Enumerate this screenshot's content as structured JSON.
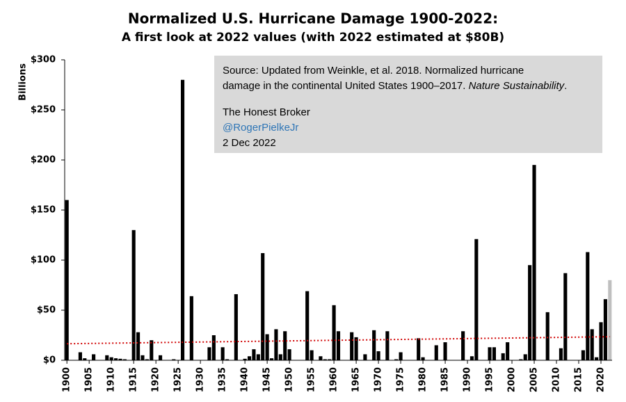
{
  "chart_data": {
    "type": "bar",
    "title": "Normalized U.S. Hurricane Damage 1900-2022:",
    "subtitle": "A first look at 2022 values (with 2022 estimated at $80B)",
    "y_label": "Billions",
    "color": "#000000",
    "x": [
      1900,
      1901,
      1902,
      1903,
      1904,
      1905,
      1906,
      1907,
      1908,
      1909,
      1910,
      1911,
      1912,
      1913,
      1914,
      1915,
      1916,
      1917,
      1918,
      1919,
      1920,
      1921,
      1922,
      1923,
      1924,
      1925,
      1926,
      1927,
      1928,
      1929,
      1930,
      1931,
      1932,
      1933,
      1934,
      1935,
      1936,
      1937,
      1938,
      1939,
      1940,
      1941,
      1942,
      1943,
      1944,
      1945,
      1946,
      1947,
      1948,
      1949,
      1950,
      1951,
      1952,
      1953,
      1954,
      1955,
      1956,
      1957,
      1958,
      1959,
      1960,
      1961,
      1962,
      1963,
      1964,
      1965,
      1966,
      1967,
      1968,
      1969,
      1970,
      1971,
      1972,
      1973,
      1974,
      1975,
      1976,
      1977,
      1978,
      1979,
      1980,
      1981,
      1982,
      1983,
      1984,
      1985,
      1986,
      1987,
      1988,
      1989,
      1990,
      1991,
      1992,
      1993,
      1994,
      1995,
      1996,
      1997,
      1998,
      1999,
      2000,
      2001,
      2002,
      2003,
      2004,
      2005,
      2006,
      2007,
      2008,
      2009,
      2010,
      2011,
      2012,
      2013,
      2014,
      2015,
      2016,
      2017,
      2018,
      2019,
      2020,
      2021
    ],
    "values": [
      160,
      0,
      0,
      8,
      2,
      0,
      6,
      0,
      0,
      5,
      3,
      2,
      1.5,
      1,
      0,
      130,
      28,
      5,
      1,
      20,
      0,
      5,
      0,
      0,
      1,
      0,
      280,
      0,
      64,
      0,
      0,
      0,
      13,
      25,
      0,
      13,
      1,
      0,
      66,
      0,
      1.5,
      4,
      11,
      6,
      107,
      26,
      2,
      31,
      6,
      29,
      11,
      0,
      0,
      0,
      69,
      10,
      0,
      4,
      1,
      1,
      55,
      29,
      0,
      0,
      28,
      23,
      0,
      6,
      0,
      30,
      9,
      0,
      29,
      0,
      1,
      8,
      0,
      0,
      0,
      22,
      3,
      0,
      0,
      15,
      0,
      18,
      0,
      0,
      0,
      29,
      0,
      4,
      121,
      0,
      0,
      13,
      13,
      0,
      7,
      18,
      0,
      0,
      1,
      6,
      95,
      195,
      0,
      0,
      48,
      0,
      0,
      12,
      87,
      0,
      0,
      0,
      10,
      108,
      31,
      3,
      38,
      61
    ],
    "estimate": {
      "x": 2022,
      "value": 80,
      "color": "#bfbfbf"
    },
    "trendline": {
      "x": [
        1900,
        2022
      ],
      "values": [
        16.5,
        23.5
      ],
      "color": "#d00000"
    },
    "xlim": [
      1899.5,
      2022.5
    ],
    "xticks": [
      1900,
      1905,
      1910,
      1915,
      1920,
      1925,
      1930,
      1935,
      1940,
      1945,
      1950,
      1955,
      1960,
      1965,
      1970,
      1975,
      1980,
      1985,
      1990,
      1995,
      2000,
      2005,
      2010,
      2015,
      2020
    ],
    "ylim": [
      0,
      300
    ],
    "yticks": [
      {
        "value": 0,
        "label": "$0"
      },
      {
        "value": 50,
        "label": "$50"
      },
      {
        "value": 100,
        "label": "$100"
      },
      {
        "value": 150,
        "label": "$150"
      },
      {
        "value": 200,
        "label": "$200"
      },
      {
        "value": 250,
        "label": "$250"
      },
      {
        "value": 300,
        "label": "$300"
      }
    ],
    "annotation": {
      "source": "Source:  Updated from Weinkle, et al. 2018. Normalized hurricane",
      "source_cont": "damage in the continental United States 1900–2017. ",
      "journal": "Nature Sustainability",
      "period": ".",
      "blog": "The Honest Broker",
      "handle": "@RogerPielkeJr",
      "date": "2 Dec 2022"
    }
  }
}
